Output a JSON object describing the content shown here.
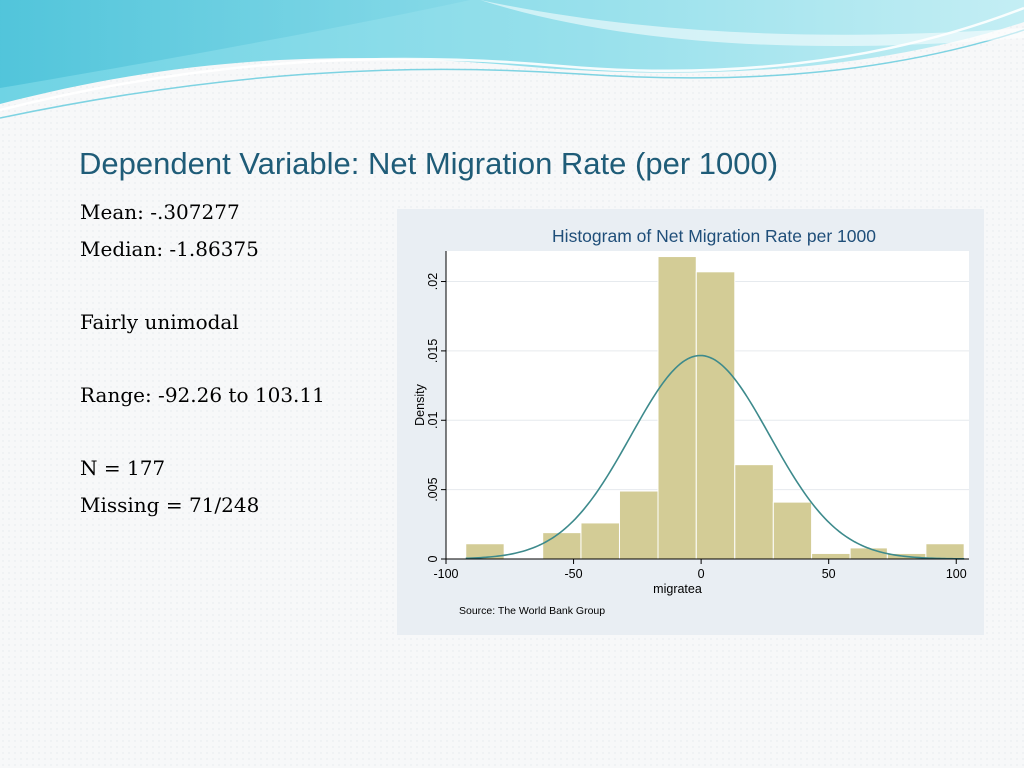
{
  "slide": {
    "title": "Dependent Variable: Net Migration Rate (per 1000)",
    "stats": {
      "mean": "Mean: -.307277",
      "median": "Median: -1.86375",
      "shape": "Fairly unimodal",
      "range": "Range: -92.26 to 103.11",
      "n": "N = 177",
      "missing": "Missing = 71/248"
    }
  },
  "colors": {
    "title": "#1f5c78",
    "bar_fill": "#d3cc96",
    "bar_edge": "#ffffff",
    "curve": "#3d8a8c",
    "panel_bg": "#e9eef3",
    "plot_bg": "#ffffff",
    "header_teal": "#5fc9dc"
  },
  "chart_data": {
    "type": "bar",
    "title": "Histogram of Net Migration Rate per 1000",
    "xlabel": "migratea",
    "ylabel": "Density",
    "note": "Source:  The World Bank Group",
    "xlim": [
      -100,
      105
    ],
    "ylim": [
      0,
      0.0222
    ],
    "grid": true,
    "xticks": [
      {
        "value": -100,
        "label": "-100"
      },
      {
        "value": -50,
        "label": "-50"
      },
      {
        "value": 0,
        "label": "0"
      },
      {
        "value": 50,
        "label": "50"
      },
      {
        "value": 100,
        "label": "100"
      }
    ],
    "yticks": [
      {
        "value": 0,
        "label": "0"
      },
      {
        "value": 0.005,
        "label": ".005"
      },
      {
        "value": 0.01,
        "label": ".01"
      },
      {
        "value": 0.015,
        "label": ".015"
      },
      {
        "value": 0.02,
        "label": ".02"
      }
    ],
    "bins": [
      {
        "x0": -92.26,
        "x1": -77.2,
        "density": 0.0011
      },
      {
        "x0": -77.2,
        "x1": -62.1,
        "density": 0.0
      },
      {
        "x0": -62.1,
        "x1": -47.1,
        "density": 0.0019
      },
      {
        "x0": -47.1,
        "x1": -32.0,
        "density": 0.0026
      },
      {
        "x0": -32.0,
        "x1": -16.9,
        "density": 0.0049
      },
      {
        "x0": -16.9,
        "x1": -1.9,
        "density": 0.0218
      },
      {
        "x0": -1.9,
        "x1": 13.2,
        "density": 0.0207
      },
      {
        "x0": 13.2,
        "x1": 28.3,
        "density": 0.0068
      },
      {
        "x0": 28.3,
        "x1": 43.3,
        "density": 0.0041
      },
      {
        "x0": 43.3,
        "x1": 58.4,
        "density": 0.0004
      },
      {
        "x0": 58.4,
        "x1": 73.0,
        "density": 0.0008
      },
      {
        "x0": 73.0,
        "x1": 88.1,
        "density": 0.0004
      },
      {
        "x0": 88.1,
        "x1": 103.11,
        "density": 0.0011
      }
    ],
    "normal_curve": {
      "mean": -0.307277,
      "sd": 27.2
    }
  }
}
